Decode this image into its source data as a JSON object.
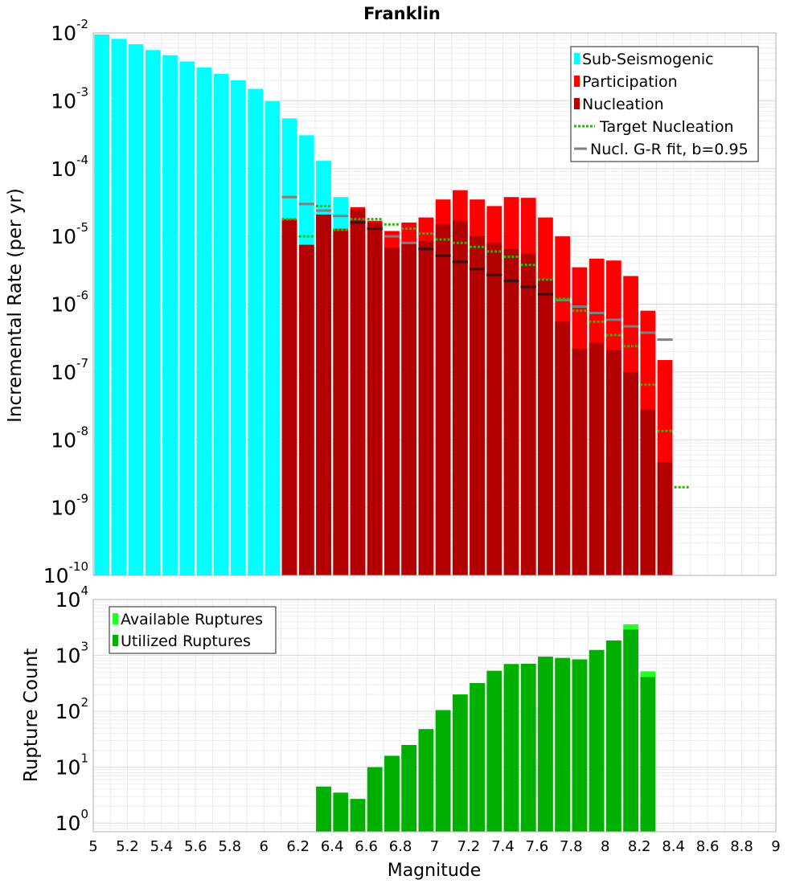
{
  "chart_data": [
    {
      "type": "bar",
      "title": "Franklin",
      "xlabel": "",
      "ylabel": "Incremental Rate (per yr)",
      "y_scale": "log",
      "ylim": [
        1e-10,
        0.01
      ],
      "xlim": [
        5,
        9
      ],
      "y_ticks": [
        {
          "base": "10",
          "exp": "-10"
        },
        {
          "base": "10",
          "exp": "-9"
        },
        {
          "base": "10",
          "exp": "-8"
        },
        {
          "base": "10",
          "exp": "-7"
        },
        {
          "base": "10",
          "exp": "-6"
        },
        {
          "base": "10",
          "exp": "-5"
        },
        {
          "base": "10",
          "exp": "-4"
        },
        {
          "base": "10",
          "exp": "-3"
        },
        {
          "base": "10",
          "exp": "-2"
        }
      ],
      "grid": true,
      "legend_position": "top-right",
      "series": [
        {
          "name": "Sub-Seismogenic",
          "color": "#00ffff",
          "style": "bar",
          "x": [
            5.05,
            5.15,
            5.25,
            5.35,
            5.45,
            5.55,
            5.65,
            5.75,
            5.85,
            5.95,
            6.05,
            6.15,
            6.25,
            6.35,
            6.45
          ],
          "values": [
            0.0095,
            0.0082,
            0.0068,
            0.0056,
            0.0047,
            0.0038,
            0.0031,
            0.0025,
            0.002,
            0.0015,
            0.00098,
            0.00055,
            0.00031,
            0.00013,
            3.8e-05
          ]
        },
        {
          "name": "Participation",
          "color": "#ff0000",
          "style": "bar",
          "x": [
            6.15,
            6.25,
            6.35,
            6.45,
            6.55,
            6.65,
            6.75,
            6.85,
            6.95,
            7.05,
            7.15,
            7.25,
            7.35,
            7.45,
            7.55,
            7.65,
            7.75,
            7.85,
            7.95,
            8.05,
            8.15,
            8.25,
            8.35
          ],
          "values": [
            1.8e-05,
            7.5e-06,
            2.1e-05,
            1.3e-05,
            2.7e-05,
            1.7e-05,
            1.2e-05,
            1.6e-05,
            1.9e-05,
            3.5e-05,
            4.8e-05,
            3.5e-05,
            2.8e-05,
            3.8e-05,
            3.7e-05,
            1.9e-05,
            1e-05,
            3.5e-06,
            4.7e-06,
            4.4e-06,
            2.6e-06,
            8e-07,
            1.5e-07
          ]
        },
        {
          "name": "Nucleation",
          "color": "#b30000",
          "style": "bar",
          "x": [
            6.15,
            6.25,
            6.35,
            6.45,
            6.55,
            6.65,
            6.75,
            6.85,
            6.95,
            7.05,
            7.15,
            7.25,
            7.35,
            7.45,
            7.55,
            7.65,
            7.75,
            7.85,
            7.95,
            8.05,
            8.15,
            8.25,
            8.35
          ],
          "values": [
            1.7e-05,
            7.5e-06,
            2.1e-05,
            1.2e-05,
            2.5e-05,
            1.6e-05,
            6.8e-06,
            8e-06,
            8.5e-06,
            1.5e-05,
            1.7e-05,
            1e-05,
            8e-06,
            6.5e-06,
            5.5e-06,
            2.3e-06,
            5.5e-07,
            2.2e-07,
            2.7e-07,
            2.1e-07,
            1e-07,
            2.8e-08,
            4.7e-09
          ]
        },
        {
          "name": "Target Nucleation",
          "color": "#22bb00",
          "style": "dotted-step",
          "x": [
            6.15,
            6.25,
            6.35,
            6.45,
            6.55,
            6.65,
            6.75,
            6.85,
            6.95,
            7.05,
            7.15,
            7.25,
            7.35,
            7.45,
            7.55,
            7.65,
            7.75,
            7.85,
            7.95,
            8.05,
            8.15,
            8.25,
            8.35,
            8.45
          ],
          "values": [
            1.8e-05,
            1e-05,
            2.8e-05,
            1.25e-05,
            1.8e-05,
            1.8e-05,
            1.5e-05,
            1.3e-05,
            1.1e-05,
            9e-06,
            8e-06,
            7e-06,
            6e-06,
            5e-06,
            3.8e-06,
            2.3e-06,
            1.2e-06,
            8e-07,
            5.5e-07,
            3.5e-07,
            2.4e-07,
            6.5e-08,
            1.35e-08,
            2e-09
          ]
        },
        {
          "name": "Nucl. G-R fit, b=0.95",
          "color": "#808080",
          "style": "solid-step",
          "x": [
            6.15,
            6.25,
            6.35,
            6.45,
            6.55,
            6.65,
            6.75,
            6.85,
            6.95,
            7.05,
            7.15,
            7.25,
            7.35,
            7.45,
            7.55,
            7.65,
            7.75,
            7.85,
            7.95,
            8.05,
            8.15,
            8.25,
            8.35
          ],
          "values": [
            3.8e-05,
            3e-05,
            2.4e-05,
            2e-05,
            1.6e-05,
            1.3e-05,
            1e-05,
            8e-06,
            6.5e-06,
            5.2e-06,
            4.2e-06,
            3.3e-06,
            2.7e-06,
            2.2e-06,
            1.8e-06,
            1.4e-06,
            1.15e-06,
            9.2e-07,
            7.4e-07,
            5.9e-07,
            4.7e-07,
            3.8e-07,
            3e-07
          ]
        }
      ]
    },
    {
      "type": "bar",
      "title": "",
      "xlabel": "Magnitude",
      "ylabel": "Rupture Count",
      "y_scale": "log",
      "ylim": [
        0.7,
        10000
      ],
      "xlim": [
        5,
        9
      ],
      "x_ticks": [
        "5",
        "5.2",
        "5.4",
        "5.6",
        "5.8",
        "6",
        "6.2",
        "6.4",
        "6.6",
        "6.8",
        "7",
        "7.2",
        "7.4",
        "7.6",
        "7.8",
        "8",
        "8.2",
        "8.4",
        "8.6",
        "8.8",
        "9"
      ],
      "y_ticks": [
        {
          "base": "10",
          "exp": "0"
        },
        {
          "base": "10",
          "exp": "1"
        },
        {
          "base": "10",
          "exp": "2"
        },
        {
          "base": "10",
          "exp": "3"
        },
        {
          "base": "10",
          "exp": "4"
        }
      ],
      "grid": true,
      "legend_position": "top-left",
      "series": [
        {
          "name": "Available Ruptures",
          "color": "#22ff22",
          "style": "bar",
          "x": [
            6.35,
            6.45,
            6.55,
            6.65,
            6.75,
            6.85,
            6.95,
            7.05,
            7.15,
            7.25,
            7.35,
            7.45,
            7.55,
            7.65,
            7.75,
            7.85,
            7.95,
            8.05,
            8.15,
            8.25
          ],
          "values": [
            4.5,
            3.5,
            2.7,
            10,
            16,
            25,
            48,
            105,
            200,
            320,
            530,
            700,
            710,
            950,
            900,
            850,
            1250,
            1850,
            3600,
            520
          ]
        },
        {
          "name": "Utilized Ruptures",
          "color": "#00b000",
          "style": "bar",
          "x": [
            6.35,
            6.45,
            6.55,
            6.65,
            6.75,
            6.85,
            6.95,
            7.05,
            7.15,
            7.25,
            7.35,
            7.45,
            7.55,
            7.65,
            7.75,
            7.85,
            7.95,
            8.05,
            8.15,
            8.25
          ],
          "values": [
            4.5,
            3.5,
            2.7,
            10,
            16,
            25,
            48,
            105,
            200,
            320,
            530,
            700,
            710,
            950,
            900,
            850,
            1250,
            1850,
            2900,
            410
          ]
        }
      ]
    }
  ]
}
